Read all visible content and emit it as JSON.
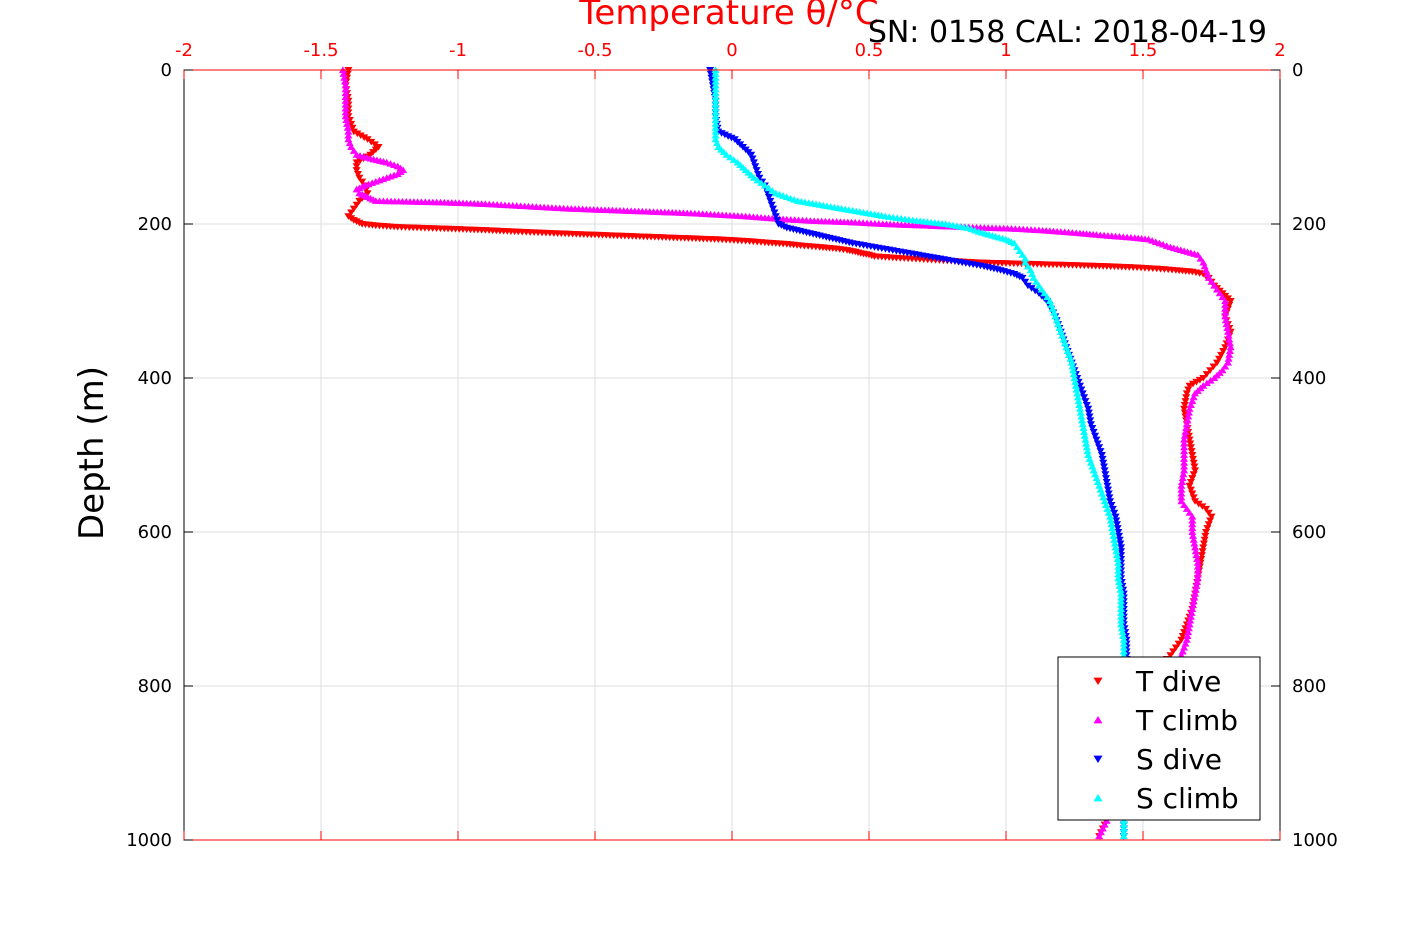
{
  "chart_data": {
    "type": "scatter",
    "title": "SN: 0158  CAL: 2018-04-19",
    "xlabel": "Temperature θ/°C",
    "ylabel": "Depth (m)",
    "xlim": [
      -2,
      2
    ],
    "ylim": [
      0,
      1000
    ],
    "y_reversed": true,
    "grid": true,
    "legend_position": "bottom-right",
    "x_ticks": [
      -2,
      -1.5,
      -1,
      -0.5,
      0,
      0.5,
      1,
      1.5,
      2
    ],
    "x_tick_labels": [
      "-2",
      "-1.5",
      "-1",
      "-0.5",
      "0",
      "0.5",
      "1",
      "1.5",
      "2"
    ],
    "y_ticks": [
      0,
      200,
      400,
      600,
      800,
      1000
    ],
    "y_tick_labels": [
      "0",
      "200",
      "400",
      "600",
      "800",
      "1000"
    ],
    "colors": {
      "top_axis": "#ff0000",
      "grid": "#dddddd"
    },
    "series": [
      {
        "name": "T dive",
        "color": "#ff0000",
        "marker": "triangle-down",
        "depth": [
          0,
          20,
          40,
          60,
          80,
          90,
          100,
          110,
          120,
          130,
          140,
          150,
          160,
          170,
          180,
          190,
          195,
          200,
          202,
          204,
          206,
          208,
          210,
          212,
          214,
          216,
          218,
          220,
          222,
          224,
          226,
          228,
          230,
          232,
          234,
          236,
          238,
          240,
          242,
          244,
          246,
          248,
          250,
          252,
          254,
          256,
          258,
          260,
          262,
          265,
          270,
          280,
          290,
          300,
          320,
          340,
          360,
          380,
          400,
          410,
          420,
          440,
          460,
          480,
          500,
          520,
          540,
          560,
          570,
          580,
          600,
          620,
          640,
          660,
          680,
          700,
          720,
          740,
          760,
          780,
          800,
          820,
          840,
          860,
          880,
          900,
          920,
          940,
          960,
          980,
          995
        ],
        "values": [
          -1.4,
          -1.41,
          -1.4,
          -1.4,
          -1.38,
          -1.33,
          -1.29,
          -1.32,
          -1.37,
          -1.37,
          -1.36,
          -1.34,
          -1.33,
          -1.36,
          -1.38,
          -1.4,
          -1.38,
          -1.35,
          -1.3,
          -1.22,
          -1.05,
          -0.9,
          -0.78,
          -0.65,
          -0.5,
          -0.35,
          -0.2,
          -0.05,
          0.05,
          0.12,
          0.2,
          0.25,
          0.32,
          0.38,
          0.42,
          0.45,
          0.47,
          0.5,
          0.52,
          0.6,
          0.7,
          0.8,
          0.9,
          1.1,
          1.3,
          1.45,
          1.55,
          1.62,
          1.68,
          1.72,
          1.74,
          1.76,
          1.79,
          1.82,
          1.8,
          1.82,
          1.8,
          1.77,
          1.72,
          1.67,
          1.66,
          1.65,
          1.66,
          1.67,
          1.68,
          1.69,
          1.67,
          1.69,
          1.73,
          1.75,
          1.73,
          1.72,
          1.71,
          1.7,
          1.69,
          1.68,
          1.66,
          1.64,
          1.6,
          1.55,
          1.53,
          1.52,
          1.5,
          1.48,
          1.46,
          1.44,
          1.42,
          1.4,
          1.38,
          1.36,
          1.34
        ]
      },
      {
        "name": "T climb",
        "color": "#ff00ff",
        "marker": "triangle-up",
        "depth": [
          0,
          20,
          40,
          60,
          80,
          90,
          100,
          110,
          115,
          120,
          125,
          130,
          135,
          140,
          145,
          150,
          155,
          160,
          165,
          170,
          172,
          174,
          176,
          178,
          180,
          182,
          184,
          186,
          188,
          190,
          192,
          194,
          196,
          198,
          200,
          202,
          204,
          206,
          208,
          210,
          212,
          214,
          216,
          218,
          220,
          225,
          230,
          235,
          240,
          250,
          260,
          270,
          280,
          290,
          300,
          320,
          340,
          360,
          380,
          390,
          400,
          410,
          420,
          440,
          460,
          480,
          500,
          520,
          540,
          560,
          570,
          580,
          600,
          620,
          640,
          660,
          680,
          700,
          720,
          740,
          760,
          780,
          800,
          820,
          840,
          860,
          880,
          900,
          920,
          940,
          960,
          980,
          995
        ],
        "values": [
          -1.42,
          -1.41,
          -1.41,
          -1.41,
          -1.4,
          -1.4,
          -1.39,
          -1.37,
          -1.32,
          -1.26,
          -1.22,
          -1.2,
          -1.22,
          -1.26,
          -1.3,
          -1.34,
          -1.37,
          -1.36,
          -1.33,
          -1.3,
          -1.05,
          -0.9,
          -0.8,
          -0.7,
          -0.6,
          -0.45,
          -0.3,
          -0.15,
          -0.05,
          0.05,
          0.12,
          0.2,
          0.3,
          0.45,
          0.55,
          0.7,
          0.85,
          1.02,
          1.12,
          1.2,
          1.27,
          1.33,
          1.4,
          1.47,
          1.52,
          1.56,
          1.6,
          1.65,
          1.7,
          1.72,
          1.73,
          1.74,
          1.76,
          1.78,
          1.8,
          1.8,
          1.81,
          1.82,
          1.81,
          1.79,
          1.76,
          1.72,
          1.69,
          1.67,
          1.66,
          1.65,
          1.65,
          1.65,
          1.64,
          1.64,
          1.66,
          1.68,
          1.68,
          1.69,
          1.7,
          1.7,
          1.69,
          1.68,
          1.67,
          1.66,
          1.64,
          1.61,
          1.58,
          1.56,
          1.54,
          1.51,
          1.49,
          1.46,
          1.44,
          1.41,
          1.39,
          1.36,
          1.34
        ]
      },
      {
        "name": "S dive",
        "color": "#0000ff",
        "marker": "triangle-down",
        "depth": [
          0,
          20,
          40,
          60,
          80,
          90,
          100,
          110,
          120,
          130,
          140,
          150,
          160,
          170,
          180,
          190,
          200,
          205,
          210,
          215,
          220,
          225,
          230,
          235,
          240,
          245,
          250,
          255,
          260,
          265,
          270,
          280,
          290,
          300,
          320,
          340,
          360,
          380,
          400,
          420,
          440,
          460,
          480,
          500,
          520,
          540,
          560,
          580,
          600,
          620,
          640,
          660,
          680,
          700,
          720,
          740,
          760,
          780,
          800,
          820,
          840,
          860,
          880,
          900,
          920,
          940,
          960,
          980,
          995
        ],
        "values": [
          -0.08,
          -0.07,
          -0.06,
          -0.06,
          -0.05,
          0.01,
          0.04,
          0.07,
          0.08,
          0.09,
          0.1,
          0.12,
          0.13,
          0.14,
          0.15,
          0.16,
          0.17,
          0.2,
          0.26,
          0.32,
          0.38,
          0.44,
          0.52,
          0.6,
          0.68,
          0.76,
          0.84,
          0.92,
          0.98,
          1.03,
          1.06,
          1.08,
          1.12,
          1.15,
          1.18,
          1.2,
          1.22,
          1.24,
          1.26,
          1.28,
          1.3,
          1.31,
          1.33,
          1.35,
          1.36,
          1.37,
          1.38,
          1.4,
          1.41,
          1.42,
          1.42,
          1.42,
          1.43,
          1.43,
          1.43,
          1.44,
          1.44,
          1.44,
          1.44,
          1.44,
          1.44,
          1.43,
          1.43,
          1.43,
          1.43,
          1.43,
          1.43,
          1.43,
          1.43
        ]
      },
      {
        "name": "S climb",
        "color": "#00ffff",
        "marker": "triangle-up",
        "depth": [
          0,
          20,
          40,
          60,
          80,
          90,
          100,
          110,
          120,
          130,
          140,
          150,
          160,
          170,
          175,
          180,
          185,
          190,
          195,
          200,
          205,
          210,
          215,
          220,
          225,
          230,
          235,
          240,
          245,
          250,
          255,
          260,
          270,
          280,
          290,
          300,
          320,
          340,
          360,
          380,
          400,
          420,
          440,
          460,
          480,
          500,
          520,
          540,
          560,
          580,
          600,
          620,
          640,
          660,
          680,
          700,
          720,
          740,
          760,
          780,
          800,
          820,
          840,
          860,
          880,
          900,
          920,
          940,
          960,
          980,
          995
        ],
        "values": [
          -0.06,
          -0.06,
          -0.06,
          -0.06,
          -0.06,
          -0.06,
          -0.05,
          -0.02,
          0.02,
          0.05,
          0.08,
          0.12,
          0.16,
          0.24,
          0.32,
          0.4,
          0.48,
          0.56,
          0.66,
          0.78,
          0.86,
          0.9,
          0.95,
          1.0,
          1.03,
          1.04,
          1.05,
          1.06,
          1.07,
          1.07,
          1.08,
          1.09,
          1.1,
          1.12,
          1.14,
          1.16,
          1.18,
          1.2,
          1.22,
          1.24,
          1.25,
          1.26,
          1.27,
          1.28,
          1.29,
          1.3,
          1.32,
          1.34,
          1.36,
          1.38,
          1.39,
          1.4,
          1.41,
          1.41,
          1.42,
          1.42,
          1.42,
          1.43,
          1.43,
          1.43,
          1.43,
          1.43,
          1.43,
          1.43,
          1.43,
          1.43,
          1.43,
          1.43,
          1.43,
          1.43,
          1.43
        ]
      }
    ]
  }
}
